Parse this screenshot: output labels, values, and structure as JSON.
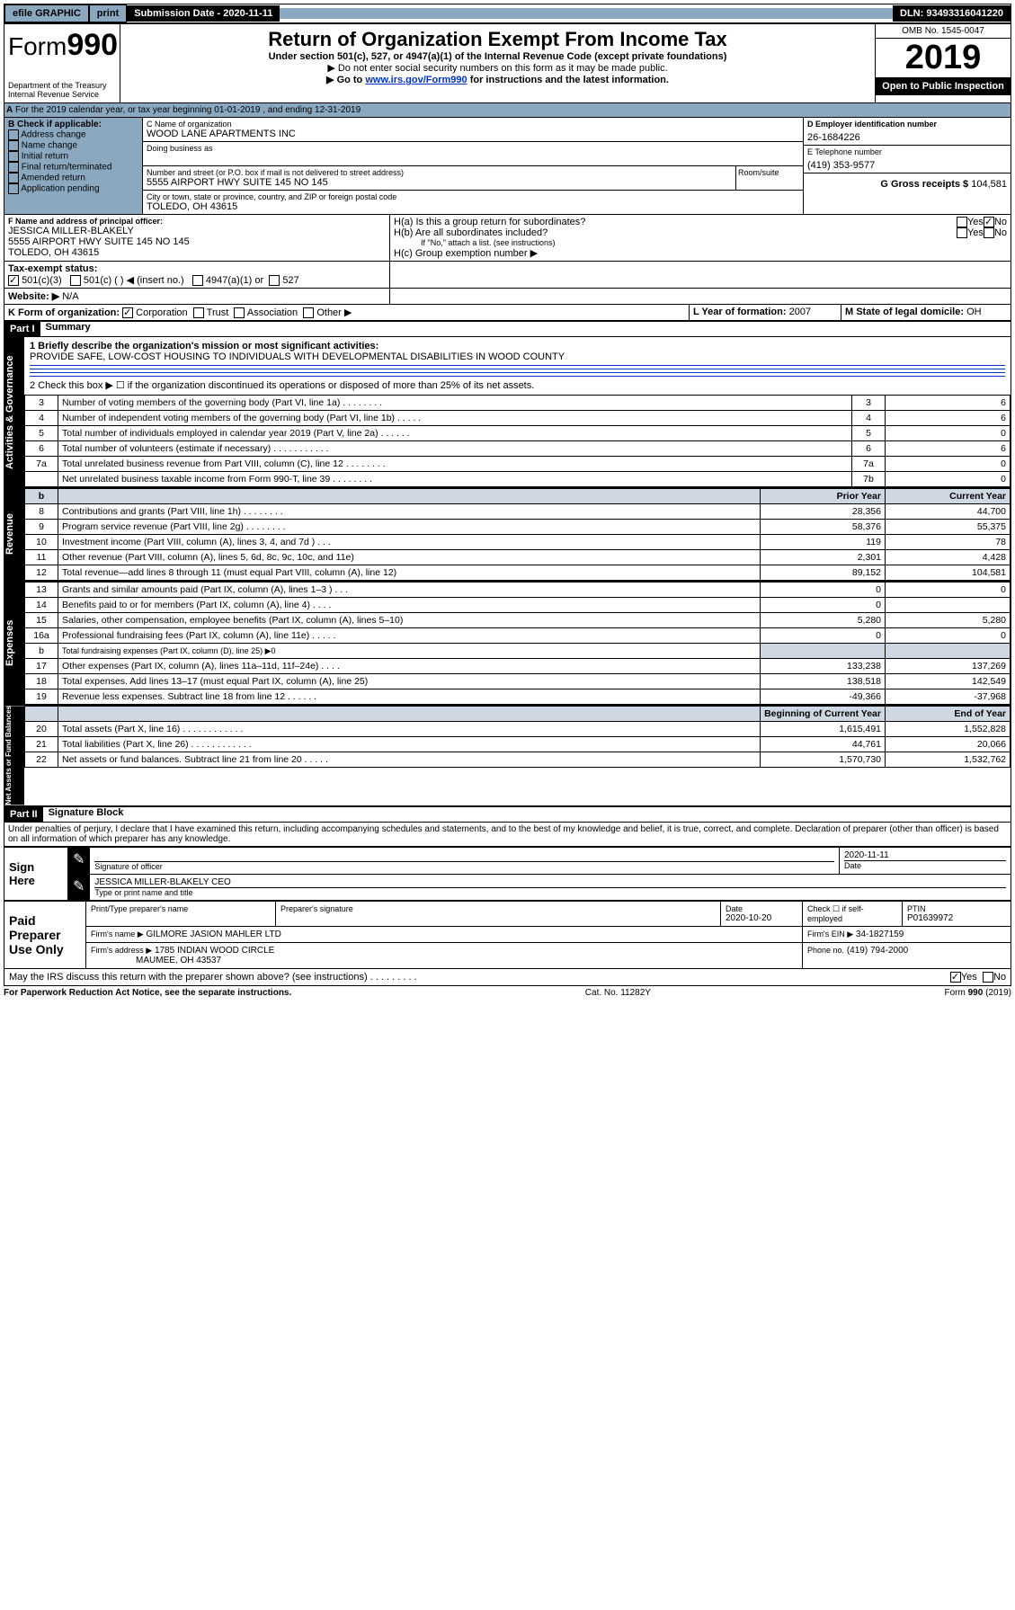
{
  "topbar": {
    "efile": "efile GRAPHIC",
    "print": "print",
    "sub_label": "Submission Date - 2020-11-11",
    "dln": "DLN: 93493316041220"
  },
  "header": {
    "form_label": "Form",
    "form_num": "990",
    "dept": "Department of the Treasury",
    "irs": "Internal Revenue Service",
    "title": "Return of Organization Exempt From Income Tax",
    "subtitle": "Under section 501(c), 527, or 4947(a)(1) of the Internal Revenue Code (except private foundations)",
    "note1": "▶ Do not enter social security numbers on this form as it may be made public.",
    "note2_pre": "▶ Go to ",
    "note2_link": "www.irs.gov/Form990",
    "note2_post": " for instructions and the latest information.",
    "omb": "OMB No. 1545-0047",
    "year": "2019",
    "open": "Open to Public Inspection"
  },
  "A_line": "For the 2019 calendar year, or tax year beginning 01-01-2019   , and ending 12-31-2019",
  "B": {
    "title": "B Check if applicable:",
    "items": [
      "Address change",
      "Name change",
      "Initial return",
      "Final return/terminated",
      "Amended return",
      "Application pending"
    ]
  },
  "C": {
    "name_label": "C Name of organization",
    "name": "WOOD LANE APARTMENTS INC",
    "dba": "Doing business as",
    "street_label": "Number and street (or P.O. box if mail is not delivered to street address)",
    "street": "5555 AIRPORT HWY SUITE 145 NO 145",
    "room": "Room/suite",
    "city_label": "City or town, state or province, country, and ZIP or foreign postal code",
    "city": "TOLEDO, OH  43615"
  },
  "D": {
    "label": "D Employer identification number",
    "val": "26-1684226"
  },
  "E": {
    "label": "E Telephone number",
    "val": "(419) 353-9577"
  },
  "G": {
    "label": "G Gross receipts $",
    "val": "104,581"
  },
  "F": {
    "label": "F  Name and address of principal officer:",
    "name": "JESSICA MILLER-BLAKELY",
    "addr1": "5555 AIRPORT HWY SUITE 145 NO 145",
    "addr2": "TOLEDO, OH  43615"
  },
  "H": {
    "a": "H(a)  Is this a group return for subordinates?",
    "b": "H(b)  Are all subordinates included?",
    "b_note": "If \"No,\" attach a list. (see instructions)",
    "c": "H(c)  Group exemption number ▶"
  },
  "I": {
    "label": "Tax-exempt status:",
    "c3": "501(c)(3)",
    "c": "501(c) (  ) ◀ (insert no.)",
    "a1": "4947(a)(1) or",
    "527": "527"
  },
  "J": {
    "label": "Website: ▶",
    "val": "N/A"
  },
  "K": {
    "label": "K Form of organization:",
    "corp": "Corporation",
    "trust": "Trust",
    "assoc": "Association",
    "other": "Other ▶"
  },
  "L": {
    "label": "L Year of formation:",
    "val": "2007"
  },
  "M": {
    "label": "M State of legal domicile:",
    "val": "OH"
  },
  "part1": {
    "label": "Part I",
    "title": "Summary"
  },
  "gov": {
    "q1": "1  Briefly describe the organization's mission or most significant activities:",
    "mission": "PROVIDE SAFE, LOW-COST HOUSING TO INDIVIDUALS WITH DEVELOPMENTAL DISABILITIES IN WOOD COUNTY",
    "q2": "2   Check this box ▶ ☐  if the organization discontinued its operations or disposed of more than 25% of its net assets.",
    "rows": [
      {
        "n": "3",
        "t": "Number of voting members of the governing body (Part VI, line 1a)   .    .    .    .    .    .    .    .",
        "nn": "3",
        "v": "6"
      },
      {
        "n": "4",
        "t": "Number of independent voting members of the governing body (Part VI, line 1b)   .    .    .    .    .",
        "nn": "4",
        "v": "6"
      },
      {
        "n": "5",
        "t": "Total number of individuals employed in calendar year 2019 (Part V, line 2a)   .    .    .    .    .    .",
        "nn": "5",
        "v": "0"
      },
      {
        "n": "6",
        "t": "Total number of volunteers (estimate if necessary)   .    .    .    .    .    .    .    .    .    .    .",
        "nn": "6",
        "v": "6"
      },
      {
        "n": "7a",
        "t": "Total unrelated business revenue from Part VIII, column (C), line 12   .    .    .    .    .    .    .    .",
        "nn": "7a",
        "v": "0"
      },
      {
        "n": "",
        "t": "Net unrelated business taxable income from Form 990-T, line 39   .    .    .    .    .    .    .    .",
        "nn": "7b",
        "v": "0"
      }
    ]
  },
  "rev": {
    "hdr_prior": "Prior Year",
    "hdr_curr": "Current Year",
    "rows": [
      {
        "n": "8",
        "t": "Contributions and grants (Part VIII, line 1h)   .    .    .    .    .    .    .    .",
        "p": "28,356",
        "c": "44,700"
      },
      {
        "n": "9",
        "t": "Program service revenue (Part VIII, line 2g)   .    .    .    .    .    .    .    .",
        "p": "58,376",
        "c": "55,375"
      },
      {
        "n": "10",
        "t": "Investment income (Part VIII, column (A), lines 3, 4, and 7d )   .    .    .",
        "p": "119",
        "c": "78"
      },
      {
        "n": "11",
        "t": "Other revenue (Part VIII, column (A), lines 5, 6d, 8c, 9c, 10c, and 11e)",
        "p": "2,301",
        "c": "4,428"
      },
      {
        "n": "12",
        "t": "Total revenue—add lines 8 through 11 (must equal Part VIII, column (A), line 12)",
        "p": "89,152",
        "c": "104,581"
      }
    ]
  },
  "exp": {
    "rows": [
      {
        "n": "13",
        "t": "Grants and similar amounts paid (Part IX, column (A), lines 1–3 )   .    .    .",
        "p": "0",
        "c": "0"
      },
      {
        "n": "14",
        "t": "Benefits paid to or for members (Part IX, column (A), line 4)   .    .    .    .",
        "p": "0",
        "c": ""
      },
      {
        "n": "15",
        "t": "Salaries, other compensation, employee benefits (Part IX, column (A), lines 5–10)",
        "p": "5,280",
        "c": "5,280"
      },
      {
        "n": "16a",
        "t": "Professional fundraising fees (Part IX, column (A), line 11e)   .    .    .    .    .",
        "p": "0",
        "c": "0"
      },
      {
        "n": "b",
        "t": "Total fundraising expenses (Part IX, column (D), line 25) ▶0",
        "p": "",
        "c": ""
      },
      {
        "n": "17",
        "t": "Other expenses (Part IX, column (A), lines 11a–11d, 11f–24e)   .    .    .    .",
        "p": "133,238",
        "c": "137,269"
      },
      {
        "n": "18",
        "t": "Total expenses. Add lines 13–17 (must equal Part IX, column (A), line 25)",
        "p": "138,518",
        "c": "142,549"
      },
      {
        "n": "19",
        "t": "Revenue less expenses. Subtract line 18 from line 12   .    .    .    .    .    .",
        "p": "-49,366",
        "c": "-37,968"
      }
    ]
  },
  "net": {
    "hdr_beg": "Beginning of Current Year",
    "hdr_end": "End of Year",
    "rows": [
      {
        "n": "20",
        "t": "Total assets (Part X, line 16)   .    .    .    .    .    .    .    .    .    .    .    .",
        "p": "1,615,491",
        "c": "1,552,828"
      },
      {
        "n": "21",
        "t": "Total liabilities (Part X, line 26)   .    .    .    .    .    .    .    .    .    .    .    .",
        "p": "44,761",
        "c": "20,066"
      },
      {
        "n": "22",
        "t": "Net assets or fund balances. Subtract line 21 from line 20   .    .    .    .    .",
        "p": "1,570,730",
        "c": "1,532,762"
      }
    ]
  },
  "part2": {
    "label": "Part II",
    "title": "Signature Block"
  },
  "perjury": "Under penalties of perjury, I declare that I have examined this return, including accompanying schedules and statements, and to the best of my knowledge and belief, it is true, correct, and complete. Declaration of preparer (other than officer) is based on all information of which preparer has any knowledge.",
  "sign": {
    "here": "Sign Here",
    "sig_officer": "Signature of officer",
    "date": "2020-11-11",
    "date_lbl": "Date",
    "name": "JESSICA MILLER-BLAKELY  CEO",
    "name_lbl": "Type or print name and title"
  },
  "paid": {
    "label": "Paid Preparer Use Only",
    "prep_name_lbl": "Print/Type preparer's name",
    "prep_sig_lbl": "Preparer's signature",
    "date_lbl": "Date",
    "date": "2020-10-20",
    "check_lbl": "Check ☐ if self-employed",
    "ptin_lbl": "PTIN",
    "ptin": "P01639972",
    "firm_name_lbl": "Firm's name    ▶",
    "firm_name": "GILMORE JASION MAHLER LTD",
    "firm_ein_lbl": "Firm's EIN ▶",
    "firm_ein": "34-1827159",
    "firm_addr_lbl": "Firm's address ▶",
    "firm_addr1": "1785 INDIAN WOOD CIRCLE",
    "firm_addr2": "MAUMEE, OH  43537",
    "phone_lbl": "Phone no.",
    "phone": "(419) 794-2000"
  },
  "discuss": "May the IRS discuss this return with the preparer shown above? (see instructions)   .    .    .    .    .    .    .    .    .",
  "footer": {
    "pra": "For Paperwork Reduction Act Notice, see the separate instructions.",
    "cat": "Cat. No. 11282Y",
    "form": "Form 990 (2019)"
  },
  "labels": {
    "yes": "Yes",
    "no": "No",
    "gov": "Activities & Governance",
    "rev": "Revenue",
    "exp": "Expenses",
    "net": "Net Assets or Fund Balances",
    "b_hdr": "b"
  }
}
